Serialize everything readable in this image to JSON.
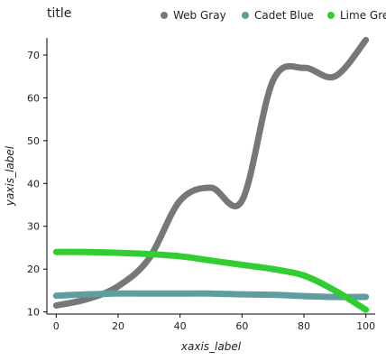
{
  "chart_data": {
    "type": "line",
    "title": "title",
    "xlabel": "xaxis_label",
    "ylabel": "yaxis_label",
    "xlim": [
      -3,
      103
    ],
    "ylim": [
      9.5,
      74
    ],
    "xticks": [
      0,
      20,
      40,
      60,
      80,
      100
    ],
    "yticks": [
      10,
      20,
      30,
      40,
      50,
      60,
      70
    ],
    "grid": false,
    "legend": {
      "placement": "top-right",
      "entries": [
        "Web Gray",
        "Cadet Blue",
        "Lime Green"
      ]
    },
    "x": [
      0,
      10,
      20,
      30,
      40,
      50,
      60,
      70,
      80,
      90,
      100
    ],
    "series": [
      {
        "name": "Web Gray",
        "color": "#777777",
        "values": [
          11.5,
          13.0,
          16.0,
          22.5,
          36.0,
          39.0,
          36.0,
          64.0,
          67.0,
          65.0,
          73.5
        ]
      },
      {
        "name": "Cadet Blue",
        "color": "#5f9ea0",
        "values": [
          13.8,
          14.1,
          14.3,
          14.3,
          14.3,
          14.3,
          14.1,
          14.0,
          13.7,
          13.5,
          13.5
        ]
      },
      {
        "name": "Lime Green",
        "color": "#32cd32",
        "values": [
          24.0,
          24.0,
          23.8,
          23.5,
          23.0,
          22.0,
          21.0,
          20.0,
          18.5,
          15.0,
          10.5
        ]
      }
    ]
  }
}
